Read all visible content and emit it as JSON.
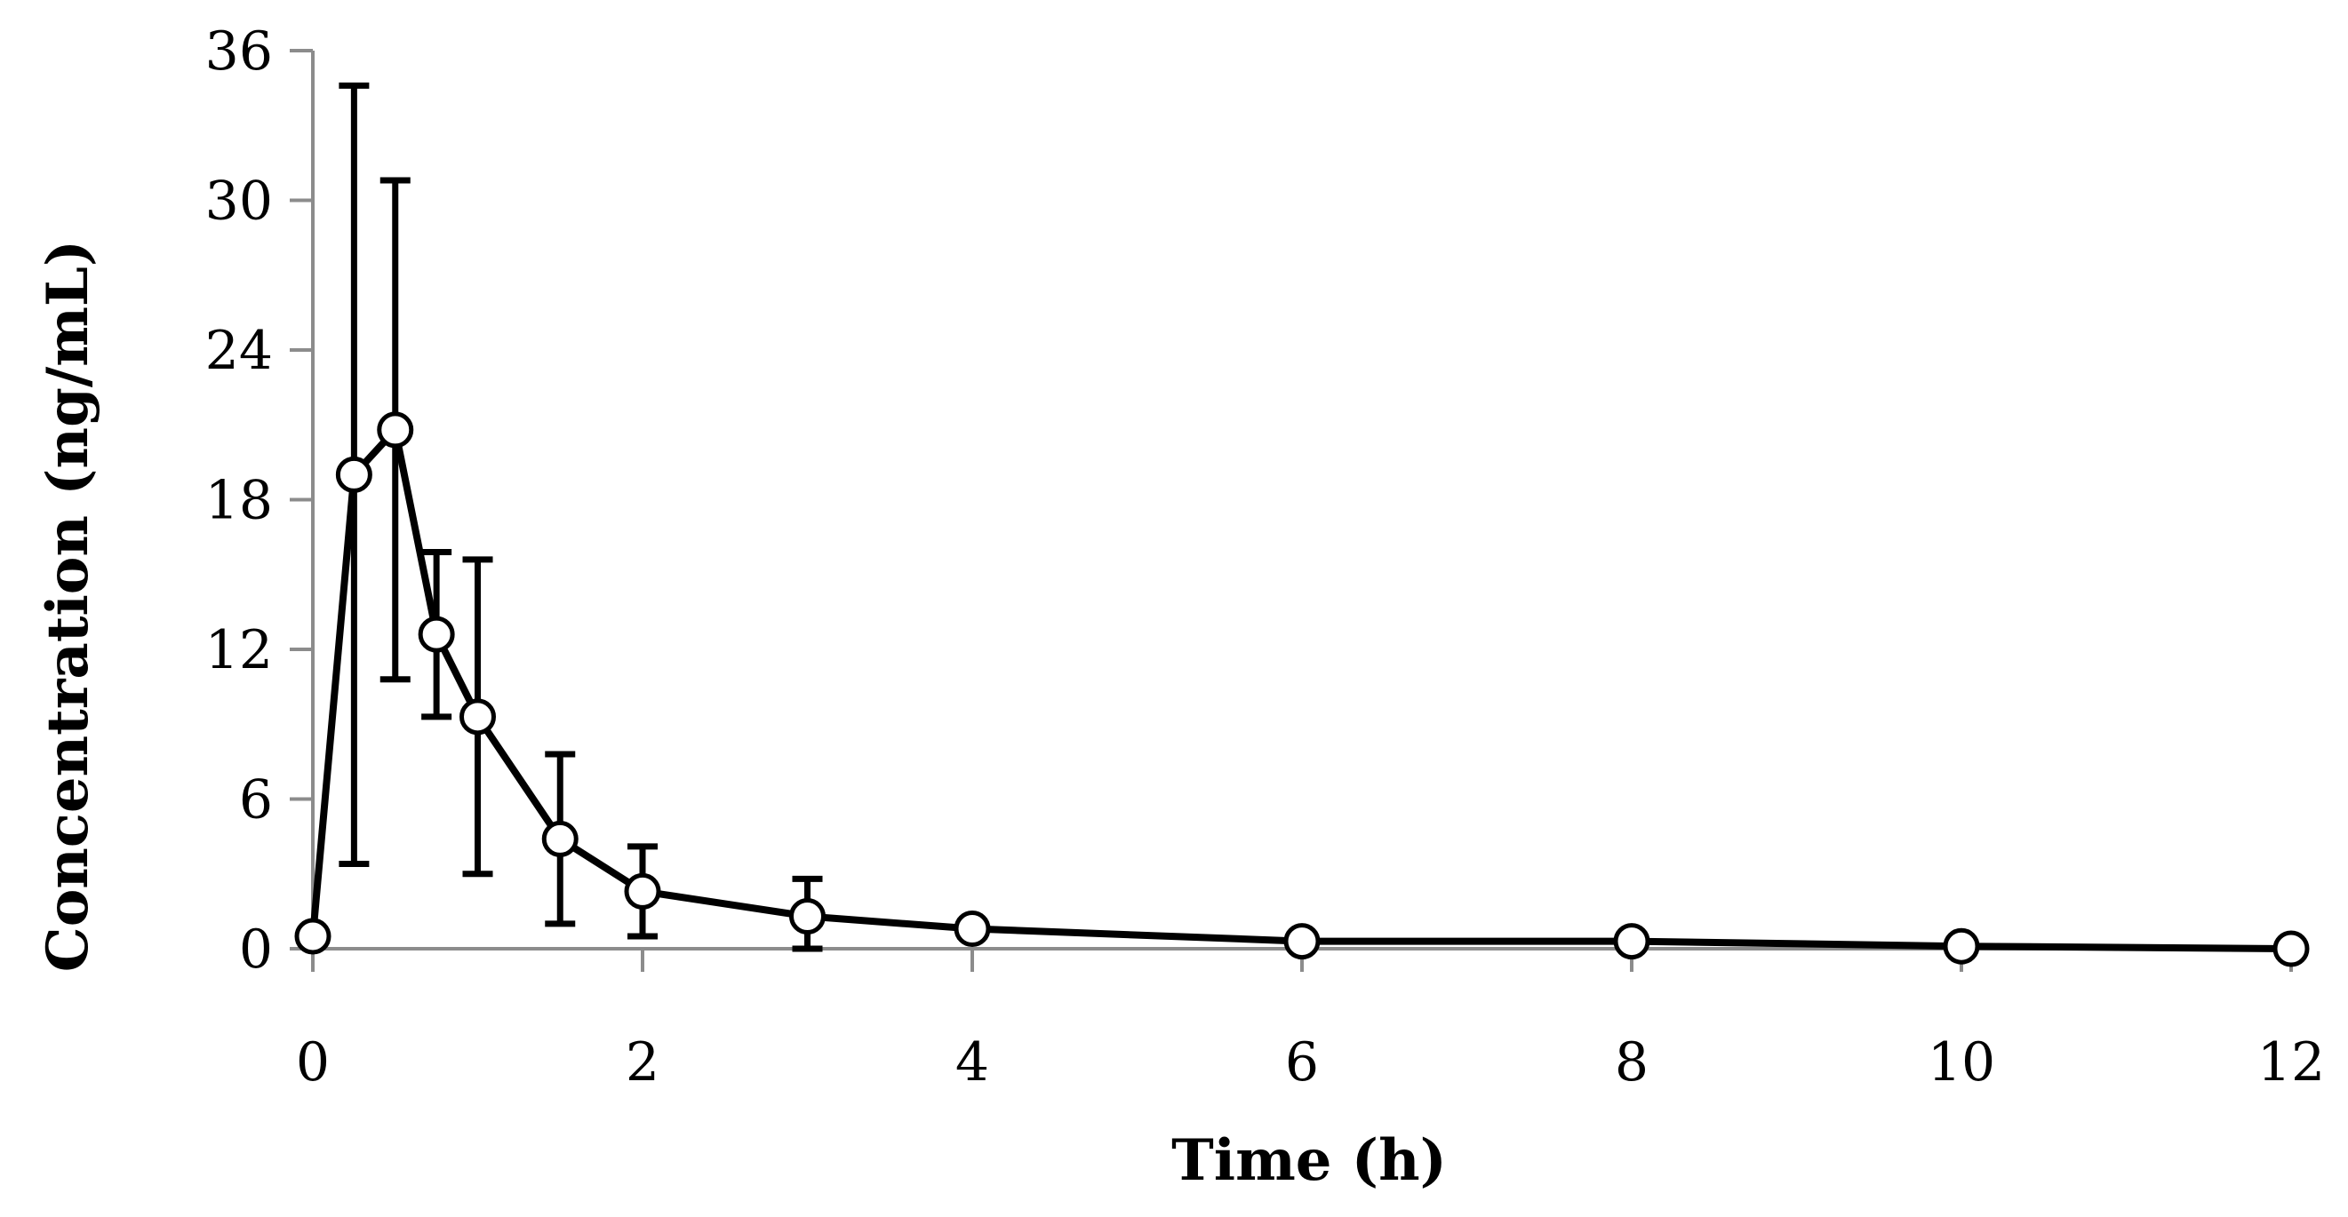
{
  "chart_data": {
    "type": "line",
    "title": "",
    "xlabel": "Time (h)",
    "ylabel": "Concentration (ng/mL)",
    "xlim": [
      0,
      12
    ],
    "ylim": [
      0,
      36
    ],
    "x_ticks": [
      0,
      2,
      4,
      6,
      8,
      10,
      12
    ],
    "y_ticks": [
      0,
      6,
      12,
      18,
      24,
      30,
      36
    ],
    "grid": false,
    "legend": "none",
    "line_color": "#000000",
    "marker": "open-circle",
    "series": [
      {
        "x": [
          0,
          0.25,
          0.5,
          0.75,
          1,
          1.5,
          2,
          3,
          4,
          6,
          8,
          10,
          12
        ],
        "y": [
          0.5,
          19.0,
          20.8,
          12.6,
          9.3,
          4.4,
          2.3,
          1.3,
          0.8,
          0.3,
          0.3,
          0.1,
          0.0
        ],
        "error": [
          0,
          15.6,
          10.0,
          3.3,
          6.3,
          3.4,
          1.8,
          1.5,
          0.3,
          0,
          0,
          0,
          0
        ]
      }
    ]
  }
}
